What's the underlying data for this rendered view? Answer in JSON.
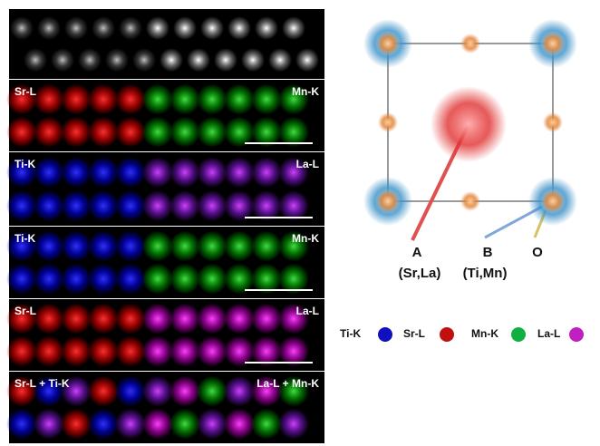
{
  "panels": [
    {
      "left": "Sr-L",
      "right": "Mn-K"
    },
    {
      "left": "Ti-K",
      "right": "La-L"
    },
    {
      "left": "Ti-K",
      "right": "Mn-K"
    },
    {
      "left": "Sr-L",
      "right": "La-L"
    },
    {
      "left": "Sr-L + Ti-K",
      "right": "La-L + Mn-K"
    }
  ],
  "structure": {
    "a_label": "A",
    "a_sites": "(Sr,La)",
    "b_label": "B",
    "b_sites": "(Ti,Mn)",
    "o_label": "O"
  },
  "legend": [
    "Ti-K",
    "Sr-L",
    "Mn-K",
    "La-L"
  ]
}
